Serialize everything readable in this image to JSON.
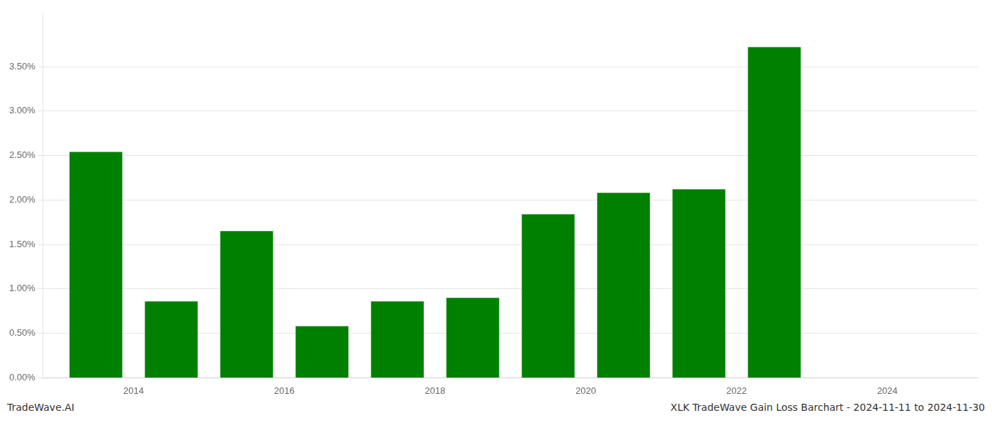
{
  "chart_data": {
    "type": "bar",
    "title": "XLK TradeWave Gain Loss Barchart - 2024-11-11 to 2024-11-30",
    "annotations": [
      "TradeWave.AI"
    ],
    "x": [
      2013.5,
      2014.5,
      2015.5,
      2016.5,
      2017.5,
      2018.5,
      2019.5,
      2020.5,
      2021.5,
      2022.5
    ],
    "values": [
      0.0254,
      0.0086,
      0.0165,
      0.0058,
      0.0086,
      0.009,
      0.0184,
      0.0208,
      0.0212,
      0.0372
    ],
    "color": "#008000",
    "xlim": [
      2012.8,
      2025.2
    ],
    "xticks": [
      2014,
      2016,
      2018,
      2020,
      2022,
      2024
    ],
    "ylim": [
      0,
      0.041
    ],
    "yticks": [
      {
        "value": 0.0,
        "label": "0.00%"
      },
      {
        "value": 0.005,
        "label": "0.50%"
      },
      {
        "value": 0.01,
        "label": "1.00%"
      },
      {
        "value": 0.015,
        "label": "1.50%"
      },
      {
        "value": 0.02,
        "label": "2.00%"
      },
      {
        "value": 0.025,
        "label": "2.50%"
      },
      {
        "value": 0.03,
        "label": "3.00%"
      },
      {
        "value": 0.035,
        "label": "3.50%"
      }
    ],
    "grid": "y"
  }
}
